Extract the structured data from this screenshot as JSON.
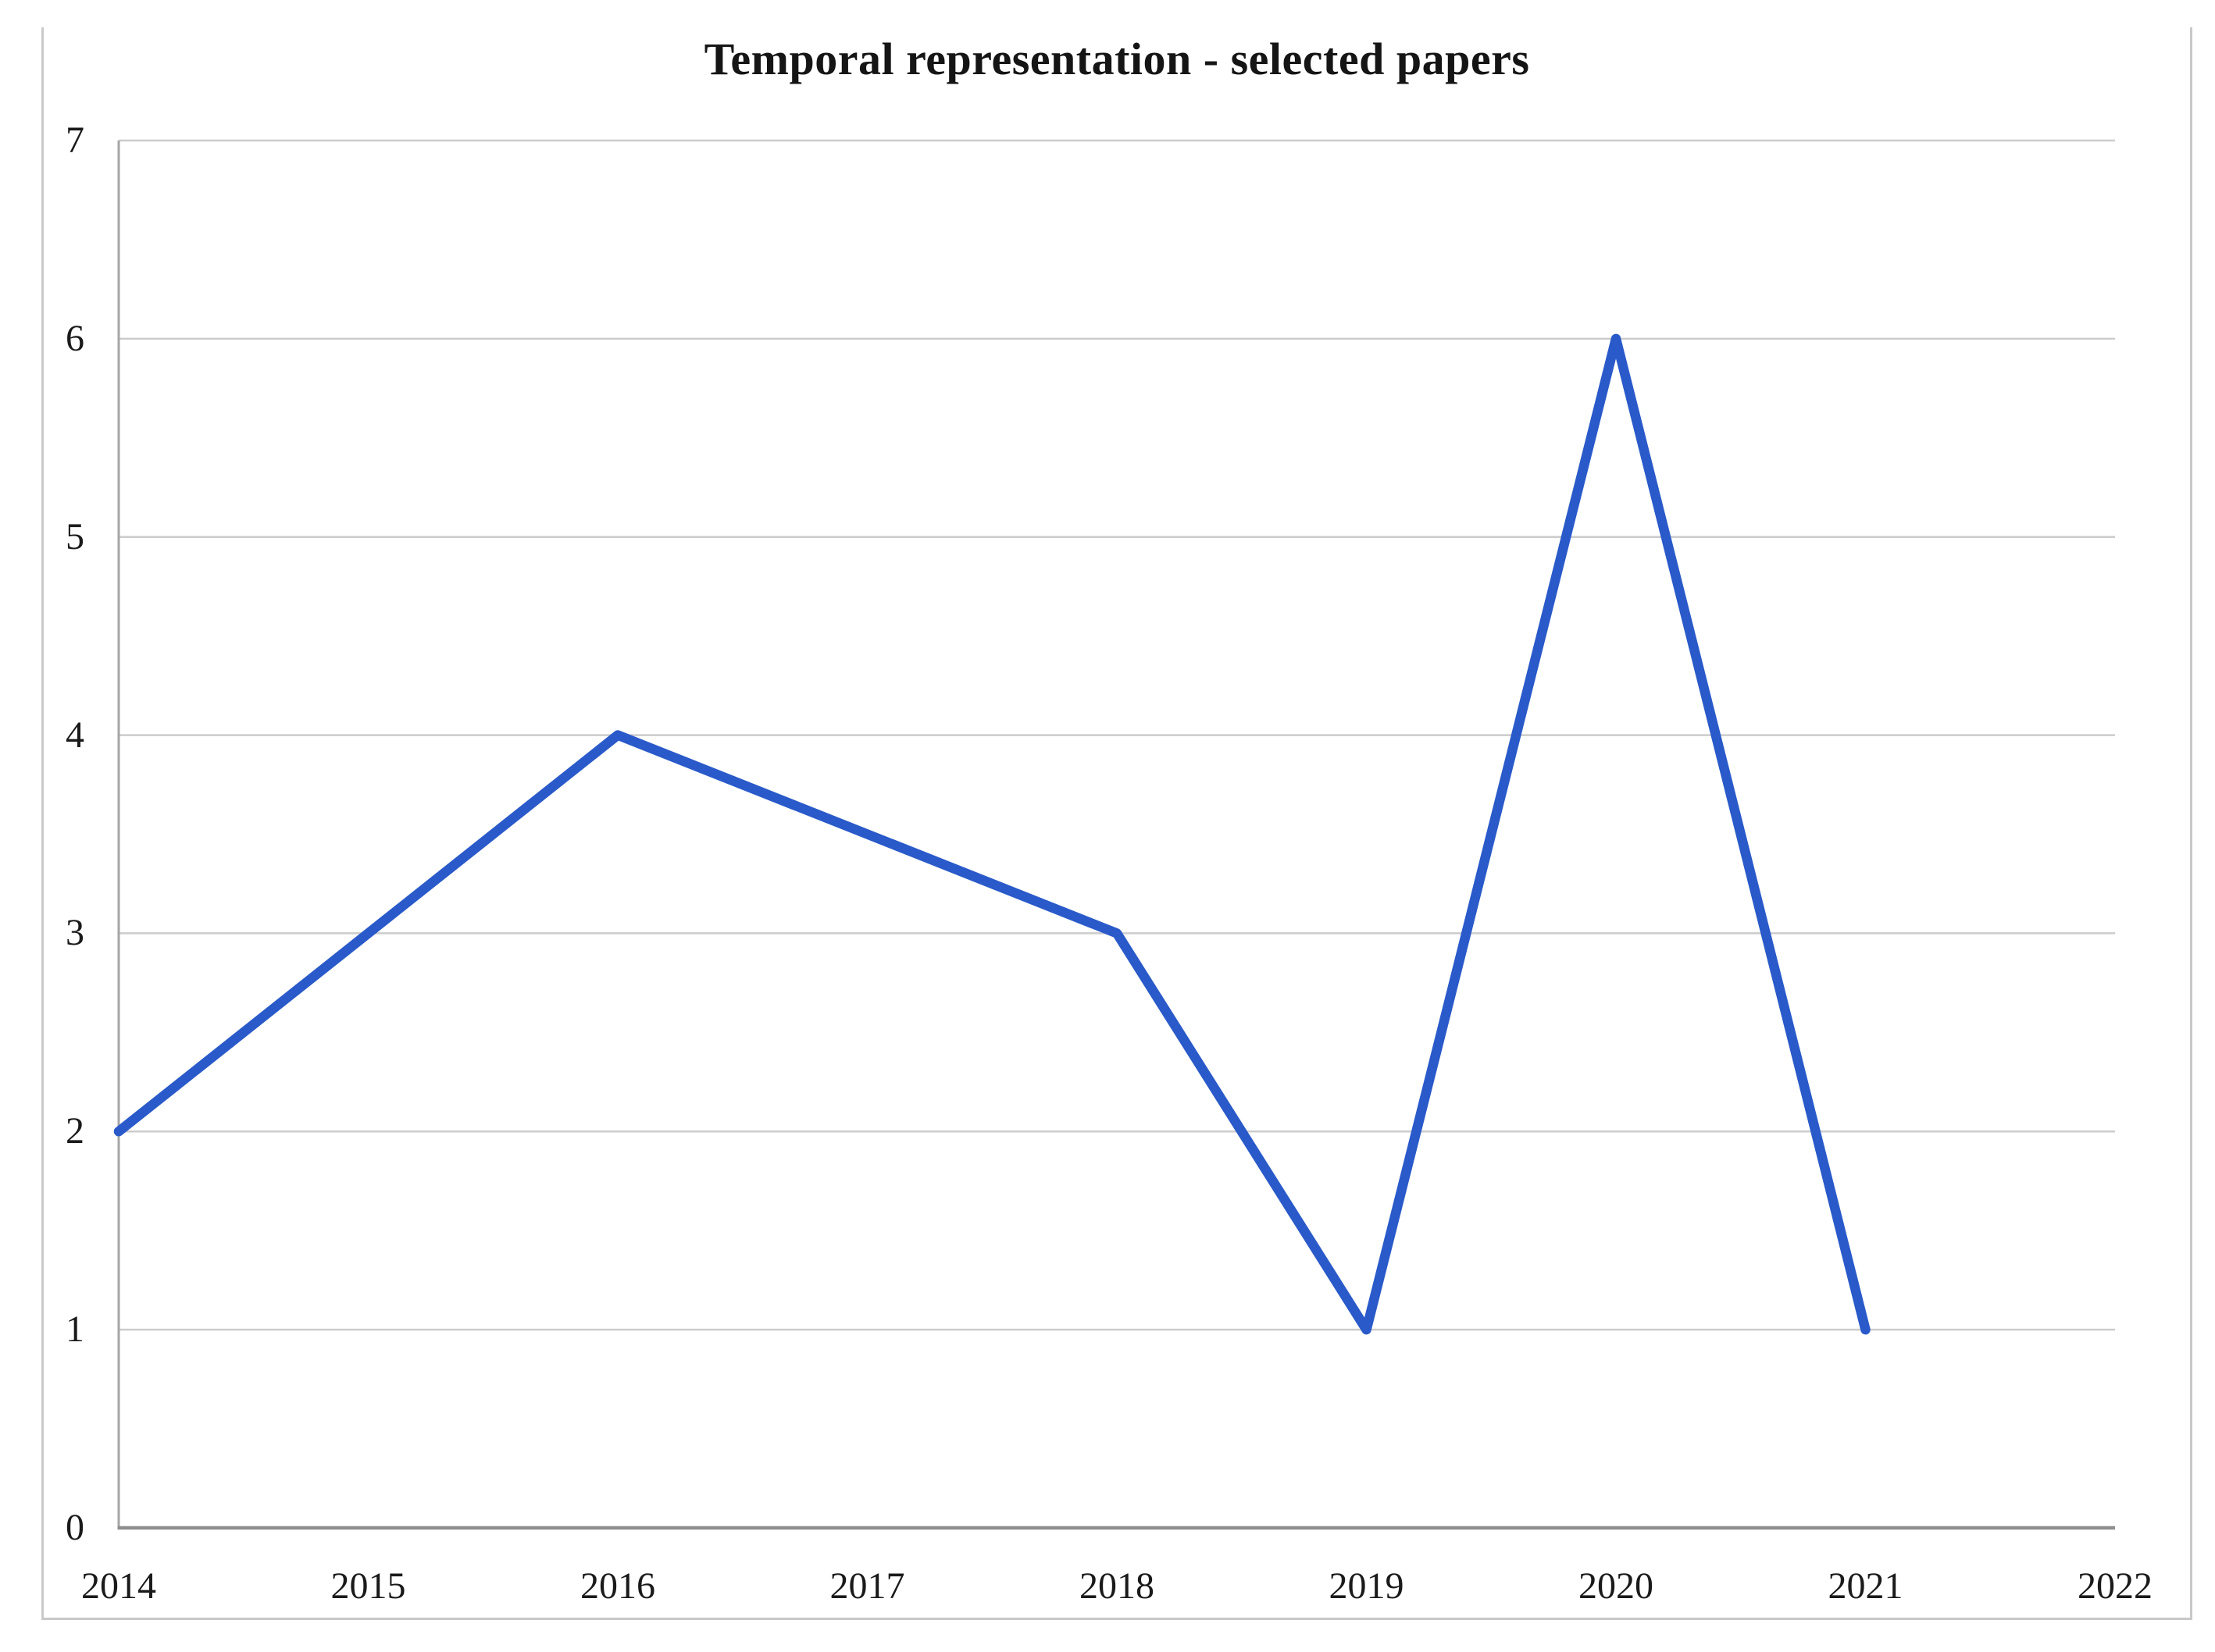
{
  "figure": {
    "title": "Temporal representation - selected papers"
  },
  "colors": {
    "series_line": "#2a5ac9",
    "gridline": "#cccccc",
    "axis_line": "#8f8f8f",
    "plot_left_border": "#a6a6a6",
    "frame_border": "#c9c9c9",
    "text": "#1a1a1a",
    "background": "#ffffff"
  },
  "chart_data": {
    "type": "line",
    "title": "Temporal representation - selected papers",
    "xlabel": "",
    "ylabel": "",
    "xlim": [
      2014,
      2022
    ],
    "ylim": [
      0,
      7
    ],
    "x_tick_labels": [
      "2014",
      "2015",
      "2016",
      "2017",
      "2018",
      "2019",
      "2020",
      "2021",
      "2022"
    ],
    "y_tick_labels": [
      "0",
      "1",
      "2",
      "3",
      "4",
      "5",
      "6",
      "7"
    ],
    "grid": "horizontal",
    "legend_position": "none",
    "series": [
      {
        "name": "selected papers",
        "color": "#2a5ac9",
        "points": [
          {
            "x": 2014,
            "y": 2
          },
          {
            "x": 2015,
            "y": 3
          },
          {
            "x": 2016,
            "y": 4
          },
          {
            "x": 2017,
            "y": 3.5
          },
          {
            "x": 2018,
            "y": 3
          },
          {
            "x": 2019,
            "y": 1
          },
          {
            "x": 2020,
            "y": 6
          },
          {
            "x": 2021,
            "y": 1
          }
        ]
      }
    ]
  }
}
